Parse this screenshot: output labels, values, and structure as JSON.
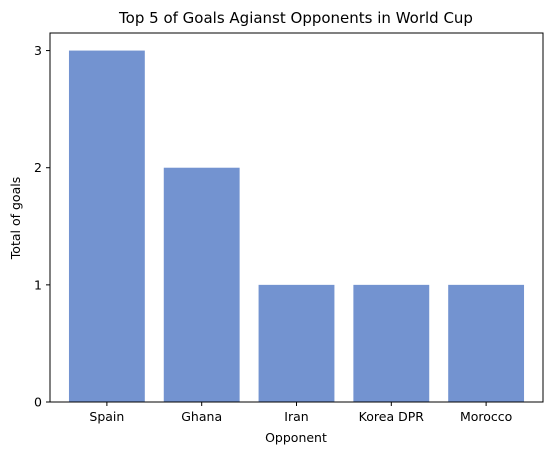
{
  "chart_data": {
    "type": "bar",
    "title": "Top 5 of Goals Agianst Opponents in World Cup",
    "xlabel": "Opponent",
    "ylabel": "Total of goals",
    "categories": [
      "Spain",
      "Ghana",
      "Iran",
      "Korea DPR",
      "Morocco"
    ],
    "values": [
      3,
      2,
      1,
      1,
      1
    ],
    "ylim": [
      0,
      3.15
    ],
    "yticks": [
      0,
      1,
      2,
      3
    ],
    "grid": false,
    "bar_color": "#7393d0"
  }
}
